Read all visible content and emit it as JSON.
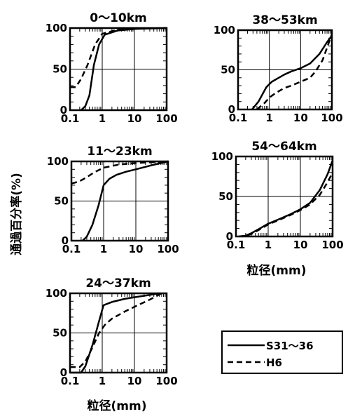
{
  "ylabel": "通過百分率(%)",
  "xlabel": "粒径(mm)",
  "legend": [
    {
      "name": "S31～36",
      "dash": false
    },
    {
      "name": "H6",
      "dash": true
    }
  ],
  "chart_data": [
    {
      "type": "line",
      "title": "0～10km",
      "xscale": "log",
      "xlim": [
        0.1,
        100
      ],
      "ylim": [
        0,
        100
      ],
      "x_ticks": [
        "0.1",
        "1",
        "10",
        "100"
      ],
      "y_ticks": [
        "0",
        "50",
        "100"
      ],
      "grid": true,
      "series": [
        {
          "name": "S31～36",
          "points": [
            [
              0.22,
              0
            ],
            [
              0.3,
              5
            ],
            [
              0.4,
              18
            ],
            [
              0.55,
              55
            ],
            [
              0.8,
              80
            ],
            [
              1.2,
              92
            ],
            [
              3,
              97
            ],
            [
              10,
              99
            ],
            [
              100,
              100
            ]
          ]
        },
        {
          "name": "H6",
          "points": [
            [
              0.1,
              28
            ],
            [
              0.15,
              28
            ],
            [
              0.22,
              38
            ],
            [
              0.35,
              55
            ],
            [
              0.6,
              80
            ],
            [
              1,
              93
            ],
            [
              3,
              98
            ],
            [
              10,
              99.5
            ],
            [
              100,
              100
            ]
          ]
        }
      ]
    },
    {
      "type": "line",
      "title": "38～53km",
      "xscale": "log",
      "xlim": [
        0.1,
        100
      ],
      "ylim": [
        0,
        100
      ],
      "x_ticks": [
        "0.1",
        "1",
        "10",
        "100"
      ],
      "y_ticks": [
        "0",
        "50",
        "100"
      ],
      "grid": true,
      "series": [
        {
          "name": "S31～36",
          "points": [
            [
              0.28,
              0
            ],
            [
              0.45,
              10
            ],
            [
              0.8,
              28
            ],
            [
              1.2,
              35
            ],
            [
              2,
              40
            ],
            [
              3,
              44
            ],
            [
              5,
              48
            ],
            [
              10,
              52
            ],
            [
              20,
              58
            ],
            [
              40,
              70
            ],
            [
              70,
              85
            ],
            [
              100,
              93
            ]
          ]
        },
        {
          "name": "H6",
          "points": [
            [
              0.4,
              0
            ],
            [
              0.7,
              8
            ],
            [
              1,
              15
            ],
            [
              1.5,
              20
            ],
            [
              2,
              23
            ],
            [
              3,
              27
            ],
            [
              5,
              30
            ],
            [
              10,
              35
            ],
            [
              20,
              40
            ],
            [
              30,
              48
            ],
            [
              50,
              62
            ],
            [
              100,
              95
            ]
          ]
        }
      ]
    },
    {
      "type": "line",
      "title": "11～23km",
      "xscale": "log",
      "xlim": [
        0.1,
        100
      ],
      "ylim": [
        0,
        100
      ],
      "x_ticks": [
        "0.1",
        "1",
        "10",
        "100"
      ],
      "y_ticks": [
        "0",
        "50",
        "100"
      ],
      "grid": true,
      "series": [
        {
          "name": "S31～36",
          "points": [
            [
              0.22,
              0
            ],
            [
              0.3,
              5
            ],
            [
              0.45,
              20
            ],
            [
              0.7,
              45
            ],
            [
              1,
              70
            ],
            [
              1.5,
              78
            ],
            [
              2.5,
              83
            ],
            [
              5,
              87
            ],
            [
              10,
              90
            ],
            [
              30,
              95
            ],
            [
              100,
              100
            ]
          ]
        },
        {
          "name": "H6",
          "points": [
            [
              0.1,
              72
            ],
            [
              0.15,
              74
            ],
            [
              0.2,
              76
            ],
            [
              0.3,
              80
            ],
            [
              0.5,
              86
            ],
            [
              1,
              92
            ],
            [
              3,
              96
            ],
            [
              10,
              98
            ],
            [
              100,
              100
            ]
          ]
        }
      ]
    },
    {
      "type": "line",
      "title": "54～64km",
      "xscale": "log",
      "xlim": [
        0.1,
        100
      ],
      "ylim": [
        0,
        100
      ],
      "x_ticks": [
        "0.1",
        "1",
        "10",
        "100"
      ],
      "y_ticks": [
        "0",
        "50",
        "100"
      ],
      "grid": true,
      "series": [
        {
          "name": "S31～36",
          "points": [
            [
              0.15,
              0
            ],
            [
              0.2,
              1
            ],
            [
              0.3,
              4
            ],
            [
              0.5,
              9
            ],
            [
              1,
              16
            ],
            [
              2,
              21
            ],
            [
              5,
              28
            ],
            [
              10,
              34
            ],
            [
              20,
              42
            ],
            [
              40,
              58
            ],
            [
              70,
              78
            ],
            [
              100,
              95
            ]
          ]
        },
        {
          "name": "H6",
          "points": [
            [
              0.12,
              0
            ],
            [
              0.2,
              1
            ],
            [
              0.3,
              3
            ],
            [
              0.5,
              8
            ],
            [
              1,
              15
            ],
            [
              2,
              20
            ],
            [
              5,
              27
            ],
            [
              10,
              33
            ],
            [
              20,
              40
            ],
            [
              40,
              52
            ],
            [
              70,
              68
            ],
            [
              100,
              80
            ]
          ]
        }
      ]
    },
    {
      "type": "line",
      "title": "24～37km",
      "xscale": "log",
      "xlim": [
        0.1,
        100
      ],
      "ylim": [
        0,
        100
      ],
      "x_ticks": [
        "0.1",
        "1",
        "10",
        "100"
      ],
      "y_ticks": [
        "0",
        "50",
        "100"
      ],
      "grid": true,
      "series": [
        {
          "name": "S31～36",
          "points": [
            [
              0.1,
              0
            ],
            [
              0.22,
              0
            ],
            [
              0.3,
              8
            ],
            [
              0.5,
              35
            ],
            [
              0.8,
              65
            ],
            [
              1.1,
              85
            ],
            [
              2,
              89
            ],
            [
              5,
              93
            ],
            [
              10,
              95
            ],
            [
              30,
              98
            ],
            [
              60,
              100
            ]
          ]
        },
        {
          "name": "H6",
          "points": [
            [
              0.1,
              7
            ],
            [
              0.2,
              7
            ],
            [
              0.3,
              14
            ],
            [
              0.5,
              32
            ],
            [
              0.8,
              50
            ],
            [
              1.2,
              60
            ],
            [
              2,
              68
            ],
            [
              5,
              77
            ],
            [
              10,
              83
            ],
            [
              30,
              92
            ],
            [
              70,
              100
            ]
          ]
        }
      ]
    }
  ]
}
